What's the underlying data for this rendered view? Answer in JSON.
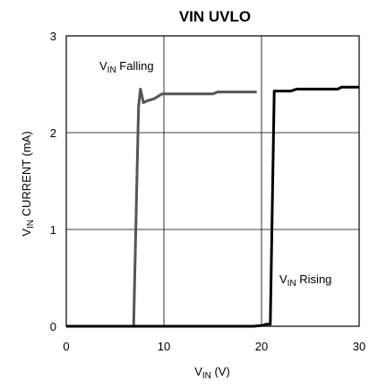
{
  "chart_data": {
    "type": "line",
    "title": "VIN UVLO",
    "xlabel": {
      "main": "V",
      "sub": "IN",
      "unit": " (V)"
    },
    "ylabel": {
      "main": "V",
      "sub": "IN",
      "rest": " CURRENT (mA)"
    },
    "xlim": [
      0,
      30
    ],
    "ylim": [
      0,
      3
    ],
    "x_ticks": [
      {
        "value": 0,
        "label": "0"
      },
      {
        "value": 10,
        "label": "10"
      },
      {
        "value": 20,
        "label": "20"
      },
      {
        "value": 30,
        "label": "30"
      }
    ],
    "y_ticks": [
      {
        "value": 0,
        "label": "0"
      },
      {
        "value": 1,
        "label": "1"
      },
      {
        "value": 2,
        "label": "2"
      },
      {
        "value": 3,
        "label": "3"
      }
    ],
    "grid": true,
    "series": [
      {
        "key": "falling",
        "label": {
          "main": "V",
          "sub": "IN",
          "rest": " Falling"
        },
        "color": "#555555",
        "x": [
          0,
          3,
          6.9,
          7.4,
          7.6,
          7.9,
          8.3,
          9.0,
          9.8,
          10.5,
          12,
          15,
          15.5,
          17,
          19.5
        ],
        "y": [
          0,
          0,
          0,
          2.27,
          2.45,
          2.31,
          2.33,
          2.35,
          2.4,
          2.4,
          2.4,
          2.4,
          2.42,
          2.42,
          2.42
        ]
      },
      {
        "key": "rising",
        "label": {
          "main": "V",
          "sub": "IN",
          "rest": " Rising"
        },
        "color": "#000000",
        "x": [
          0,
          10,
          19.2,
          20.2,
          20.4,
          20.9,
          21.3,
          23,
          23.6,
          26,
          27.8,
          28.2,
          30
        ],
        "y": [
          0,
          0,
          0,
          0.01,
          0.02,
          0.02,
          2.43,
          2.43,
          2.45,
          2.45,
          2.45,
          2.47,
          2.47
        ]
      }
    ]
  }
}
